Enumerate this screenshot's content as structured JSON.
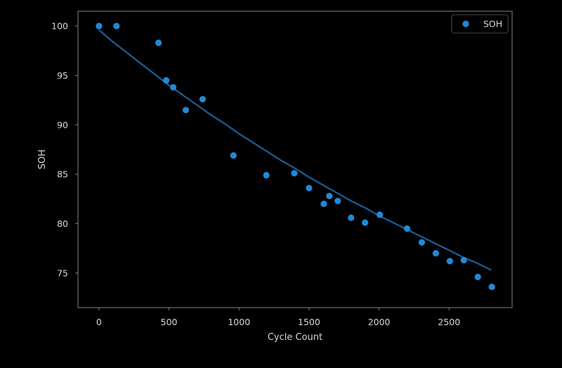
{
  "chart_data": {
    "type": "scatter",
    "xlabel": "Cycle Count",
    "ylabel": "SOH",
    "xlim": [
      -150,
      2950
    ],
    "ylim": [
      71.5,
      101.5
    ],
    "xticks": [
      0,
      500,
      1000,
      1500,
      2000,
      2500
    ],
    "yticks": [
      75,
      80,
      85,
      90,
      95,
      100
    ],
    "grid": false,
    "legend_placement": "top-right",
    "colors": {
      "background": "#000000",
      "axes": "#808080",
      "text": "#d9d9d9",
      "points": "#1f8ad6",
      "fit_line": "#1a5f99"
    },
    "series": [
      {
        "name": "SOH",
        "kind": "scatter",
        "x": [
          0,
          125,
          425,
          480,
          530,
          620,
          740,
          960,
          1195,
          1395,
          1500,
          1605,
          1645,
          1705,
          1800,
          1900,
          2005,
          2200,
          2305,
          2405,
          2505,
          2605,
          2705,
          2805
        ],
        "y": [
          100.0,
          100.0,
          98.3,
          94.5,
          93.8,
          91.5,
          92.6,
          86.9,
          84.9,
          85.1,
          83.6,
          82.0,
          82.8,
          82.3,
          80.6,
          80.1,
          80.9,
          79.5,
          78.1,
          77.0,
          76.2,
          76.3,
          74.6,
          73.6
        ]
      },
      {
        "kind": "line",
        "x": [
          0,
          100,
          200,
          300,
          400,
          500,
          600,
          700,
          800,
          900,
          1000,
          1100,
          1200,
          1300,
          1400,
          1500,
          1600,
          1700,
          1800,
          1900,
          2000,
          2100,
          2200,
          2300,
          2400,
          2500,
          2600,
          2700,
          2800
        ],
        "y": [
          99.6,
          98.4,
          97.3,
          96.2,
          95.1,
          94.0,
          93.0,
          92.0,
          91.0,
          90.1,
          89.1,
          88.2,
          87.3,
          86.4,
          85.6,
          84.7,
          83.9,
          83.1,
          82.3,
          81.6,
          80.8,
          80.1,
          79.4,
          78.7,
          78.0,
          77.3,
          76.6,
          76.0,
          75.3
        ]
      }
    ]
  }
}
